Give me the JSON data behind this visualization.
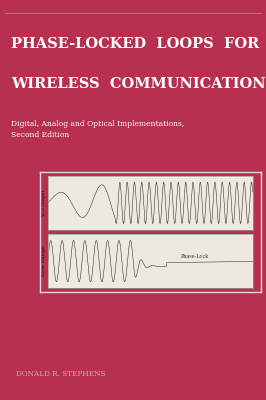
{
  "bg_color": "#b83050",
  "title_line1": "PHASE-LOCKED  LOOPS  FOR",
  "title_line2": "WIRELESS  COMMUNICATIONS",
  "subtitle": "Digital, Analog and Optical Implementations,\nSecond Edition",
  "author": "DONALD R. STEPHENS",
  "title_color": "#ffffff",
  "subtitle_color": "#ffffff",
  "author_color": "#ccaaaa",
  "vco_label": "VCO Output",
  "error_label": "Error Voltage",
  "phase_lock_label": "Phase-Lock",
  "top_line_color": "#cc8888"
}
